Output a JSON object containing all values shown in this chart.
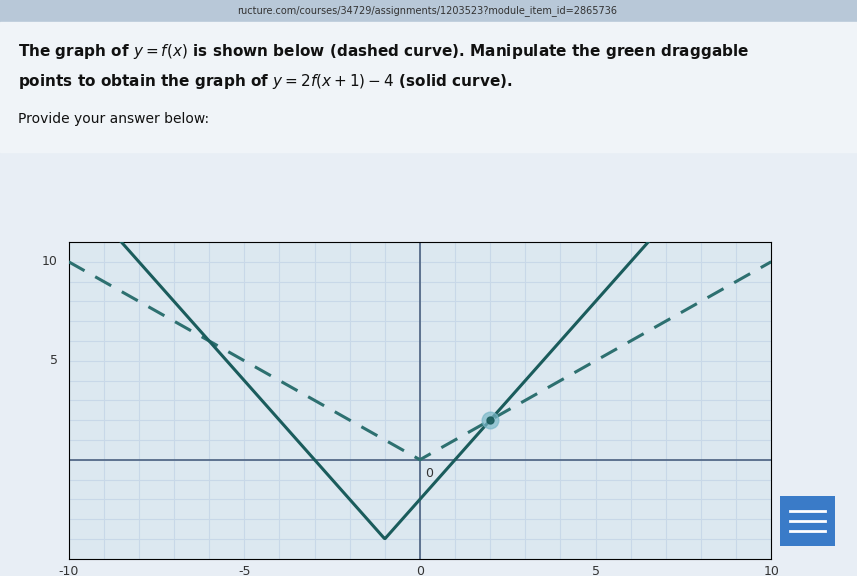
{
  "title_text": "The graph of y = f(x) is shown below (dashed curve). Manipulate the green draggable\npoints to obtain the graph of y = 2f(x+1) − 4 (solid curve).",
  "subtitle": "Provide your answer below:",
  "url_bar": "ructure.com/courses/34729/assignments/1203523?module_item_id=2865736",
  "xlim": [
    -10,
    10
  ],
  "ylim": [
    -5,
    11
  ],
  "xticks": [
    -10,
    -5,
    0,
    5,
    10
  ],
  "yticks": [
    0,
    5,
    10
  ],
  "grid_color": "#c8d8e8",
  "bg_color": "#e8eef5",
  "plot_bg_color": "#dce8f0",
  "dashed_color": "#2d7070",
  "solid_color": "#1a5c5c",
  "dot_color": "#7ab8c8",
  "dot_x": 2,
  "dot_y": 2,
  "axis_color": "#4a6080",
  "text_color": "#111111",
  "header_bg": "#cdd8e8",
  "header_url_bg": "#b8c8d8"
}
